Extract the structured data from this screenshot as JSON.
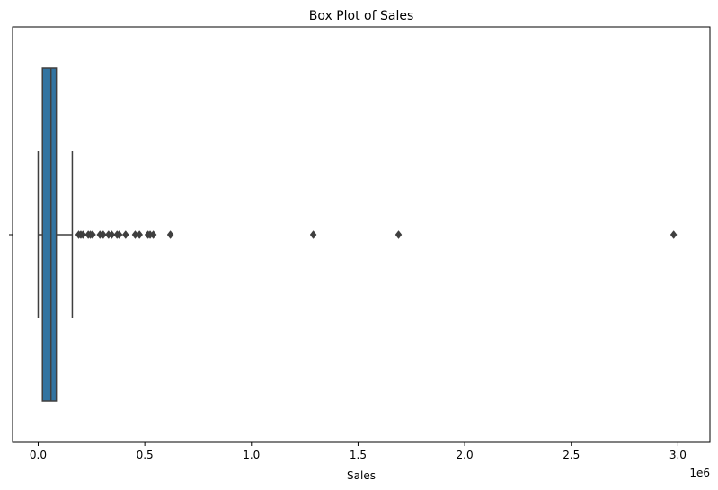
{
  "chart_data": {
    "type": "box",
    "title": "Box Plot of Sales",
    "xlabel": "Sales",
    "ylabel": "",
    "orientation": "horizontal",
    "x_scale_factor_label": "1e6",
    "xlim": [
      -120000,
      3150000
    ],
    "x_ticks": [
      {
        "value": 0,
        "label": "0.0"
      },
      {
        "value": 500000,
        "label": "0.5"
      },
      {
        "value": 1000000,
        "label": "1.0"
      },
      {
        "value": 1500000,
        "label": "1.5"
      },
      {
        "value": 2000000,
        "label": "2.0"
      },
      {
        "value": 2500000,
        "label": "2.5"
      },
      {
        "value": 3000000,
        "label": "3.0"
      }
    ],
    "box": {
      "whisker_low": 0,
      "q1": 20000,
      "median": 60000,
      "q3": 85000,
      "whisker_high": 160000,
      "color": "#3274a1"
    },
    "outliers": [
      190000,
      200000,
      210000,
      235000,
      245000,
      255000,
      290000,
      305000,
      330000,
      345000,
      370000,
      380000,
      410000,
      455000,
      475000,
      515000,
      525000,
      540000,
      620000,
      1290000,
      1690000,
      2980000
    ],
    "grid": false,
    "legend": "none"
  }
}
